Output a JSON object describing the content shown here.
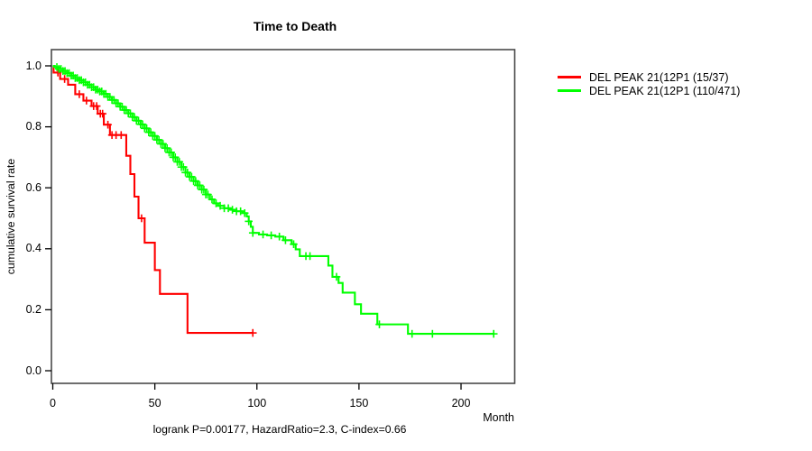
{
  "figure": {
    "title": "Time to Death",
    "x_axis": {
      "unit_label": "Month"
    },
    "y_axis": {
      "label": "cumulative survival rate"
    },
    "annotation": "logrank P=0.00177, HazardRatio=2.3, C-index=0.66"
  },
  "chart_data": {
    "type": "line",
    "subtype": "kaplan-meier-survival-steps",
    "title": "Time to Death",
    "xlabel": "Month",
    "ylabel": "cumulative survival rate",
    "xlim": [
      0,
      226
    ],
    "ylim": [
      0.0,
      1.0
    ],
    "x_ticks": [
      0,
      50,
      100,
      150,
      200
    ],
    "y_ticks": [
      0.0,
      0.2,
      0.4,
      0.6,
      0.8,
      1.0
    ],
    "grid": false,
    "legend_position": "right-outside",
    "annotation": "logrank P=0.00177, HazardRatio=2.3, C-index=0.66",
    "statistics": {
      "logrank_p": 0.00177,
      "hazard_ratio": 2.3,
      "c_index": 0.66
    },
    "series": [
      {
        "name": "DEL PEAK 21(12P1 (15/37)",
        "color": "#ff0000",
        "events_over_total": "15/37",
        "steps": [
          [
            0,
            1.0
          ],
          [
            0.4,
            0.978
          ],
          [
            3.6,
            0.957
          ],
          [
            7.5,
            0.938
          ],
          [
            11,
            0.907
          ],
          [
            15,
            0.886
          ],
          [
            19,
            0.868
          ],
          [
            22,
            0.843
          ],
          [
            25,
            0.807
          ],
          [
            28,
            0.773
          ],
          [
            36,
            0.705
          ],
          [
            38,
            0.645
          ],
          [
            40,
            0.571
          ],
          [
            42,
            0.5
          ],
          [
            45,
            0.42
          ],
          [
            50,
            0.33
          ],
          [
            52.5,
            0.252
          ],
          [
            66,
            0.124
          ]
        ],
        "end_time": 98,
        "censor_times": [
          2.5,
          5.8,
          13,
          16.5,
          20,
          21.5,
          23.3,
          24.4,
          27,
          29,
          31,
          33.5,
          43.5,
          98
        ]
      },
      {
        "name": "DEL PEAK 21(12P1 (110/471)",
        "color": "#00ff00",
        "events_over_total": "110/471",
        "steps": [
          [
            0,
            1.0
          ],
          [
            1,
            0.996
          ],
          [
            3,
            0.99
          ],
          [
            5,
            0.983
          ],
          [
            7,
            0.976
          ],
          [
            9,
            0.968
          ],
          [
            11,
            0.96
          ],
          [
            13,
            0.953
          ],
          [
            15,
            0.946
          ],
          [
            17,
            0.938
          ],
          [
            19,
            0.93
          ],
          [
            21,
            0.922
          ],
          [
            23,
            0.916
          ],
          [
            25,
            0.908
          ],
          [
            27,
            0.898
          ],
          [
            29,
            0.888
          ],
          [
            31,
            0.877
          ],
          [
            33,
            0.866
          ],
          [
            35,
            0.855
          ],
          [
            37,
            0.844
          ],
          [
            39,
            0.832
          ],
          [
            41,
            0.82
          ],
          [
            43,
            0.808
          ],
          [
            45,
            0.795
          ],
          [
            47,
            0.782
          ],
          [
            49,
            0.77
          ],
          [
            51,
            0.757
          ],
          [
            53,
            0.744
          ],
          [
            55,
            0.73
          ],
          [
            57,
            0.716
          ],
          [
            59,
            0.7
          ],
          [
            61,
            0.685
          ],
          [
            63,
            0.668
          ],
          [
            65,
            0.65
          ],
          [
            67,
            0.636
          ],
          [
            69,
            0.622
          ],
          [
            71,
            0.608
          ],
          [
            73,
            0.594
          ],
          [
            75,
            0.578
          ],
          [
            77,
            0.562
          ],
          [
            79,
            0.549
          ],
          [
            81,
            0.541
          ],
          [
            84,
            0.533
          ],
          [
            87,
            0.528
          ],
          [
            90,
            0.523
          ],
          [
            93,
            0.517
          ],
          [
            95,
            0.506
          ],
          [
            96,
            0.49
          ],
          [
            97,
            0.472
          ],
          [
            98,
            0.452
          ],
          [
            101,
            0.447
          ],
          [
            105,
            0.444
          ],
          [
            109,
            0.44
          ],
          [
            113,
            0.428
          ],
          [
            117,
            0.415
          ],
          [
            119,
            0.398
          ],
          [
            121,
            0.376
          ],
          [
            135,
            0.345
          ],
          [
            137,
            0.308
          ],
          [
            140,
            0.288
          ],
          [
            142,
            0.256
          ],
          [
            148,
            0.218
          ],
          [
            151,
            0.187
          ],
          [
            159,
            0.152
          ],
          [
            174,
            0.121
          ]
        ],
        "end_time": 216,
        "censor_times": [
          2,
          3,
          4,
          5,
          6,
          7,
          8,
          9,
          10,
          11,
          12,
          13,
          14,
          15,
          16,
          17,
          18,
          19,
          20,
          21,
          22,
          23,
          24,
          25,
          26,
          27,
          28,
          29,
          30,
          31,
          32,
          33,
          34,
          35,
          36,
          37,
          38,
          39,
          40,
          41,
          42,
          43,
          44,
          45,
          46,
          47,
          48,
          49,
          50,
          51,
          52,
          53,
          54,
          55,
          56,
          57,
          58,
          59,
          60,
          61,
          62,
          63,
          64,
          65,
          66,
          67,
          68,
          69,
          70,
          71,
          72,
          73,
          74,
          75,
          76,
          78,
          80,
          82,
          84,
          86,
          88,
          90,
          92,
          94,
          96,
          98,
          103,
          107,
          111,
          114,
          118,
          124,
          126,
          139,
          160,
          176,
          186,
          216
        ]
      }
    ]
  }
}
